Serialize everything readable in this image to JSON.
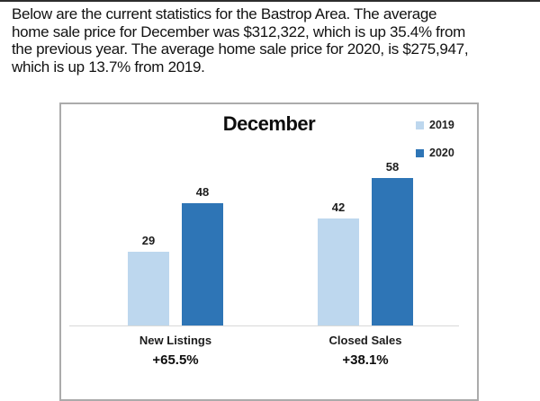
{
  "page": {
    "intro_lines": [
      "Below are the current statistics for the Bastrop Area. The average",
      "home sale price for December was $312,322, which is up 35.4% from",
      "the previous year. The average home sale price for 2020, is $275,947,",
      "which is up 13.7% from 2019."
    ]
  },
  "chart_data": {
    "type": "bar",
    "title": "December",
    "categories": [
      "New Listings",
      "Closed Sales"
    ],
    "series": [
      {
        "name": "2019",
        "color": "#BDD7EE",
        "values": [
          29,
          42
        ]
      },
      {
        "name": "2020",
        "color": "#2E75B6",
        "values": [
          48,
          58
        ]
      }
    ],
    "change_labels": [
      "+65.5%",
      "+38.1%"
    ],
    "value_labels_shown": true,
    "legend_position": "top-right",
    "grid": false,
    "ylim": [
      0,
      87
    ],
    "colors": {
      "series_2019": "#BDD7EE",
      "series_2020": "#2E75B6",
      "panel_border": "#ABABAB",
      "axis_line": "#D9D9D9"
    }
  }
}
